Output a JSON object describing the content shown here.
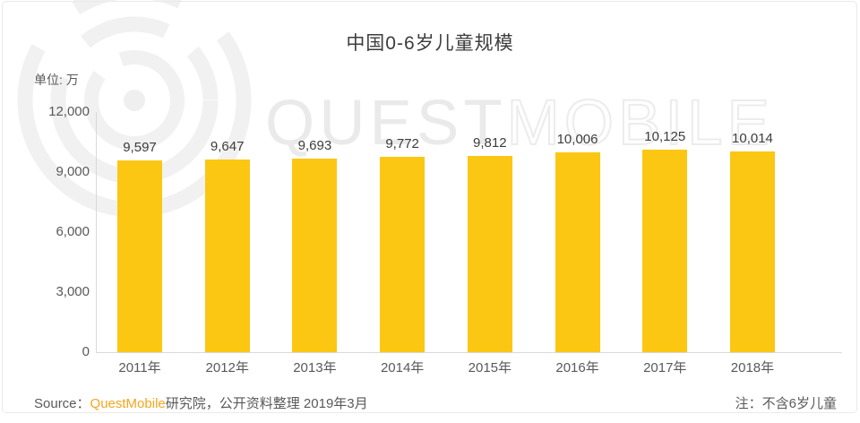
{
  "title": "中国0-6岁儿童规模",
  "unit_label": "单位: 万",
  "watermark": {
    "text_primary": "QUEST",
    "text_secondary": "MOBILE",
    "logo": "questmobile-ring-logo"
  },
  "footer": {
    "source_prefix": "Source：",
    "source_brand": "QuestMobile",
    "source_suffix": "研究院，公开资料整理 2019年3月",
    "note": "注：不含6岁儿童"
  },
  "colors": {
    "bar": "#FBC713",
    "brand_orange": "#F7A41D",
    "axis_line": "#D9D9D9",
    "title_text": "#3D3D3D",
    "label_text": "#3C3C3C",
    "tick_text": "#595959",
    "watermark_gray": "#ECECEC"
  },
  "chart_data": {
    "type": "bar",
    "title": "中国0-6岁儿童规模",
    "unit": "万",
    "categories": [
      "2011年",
      "2012年",
      "2013年",
      "2014年",
      "2015年",
      "2016年",
      "2017年",
      "2018年"
    ],
    "values": [
      9597,
      9647,
      9693,
      9772,
      9812,
      10006,
      10125,
      10014
    ],
    "value_labels": [
      "9,597",
      "9,647",
      "9,693",
      "9,772",
      "9,812",
      "10,006",
      "10,125",
      "10,014"
    ],
    "xlabel": "",
    "ylabel": "万",
    "ylim": [
      0,
      12000
    ],
    "yticks": [
      0,
      3000,
      6000,
      9000,
      12000
    ],
    "ytick_labels": [
      "0",
      "3,000",
      "6,000",
      "9,000",
      "12,000"
    ],
    "grid": false,
    "legend": false,
    "bar_color": "#FBC713"
  }
}
